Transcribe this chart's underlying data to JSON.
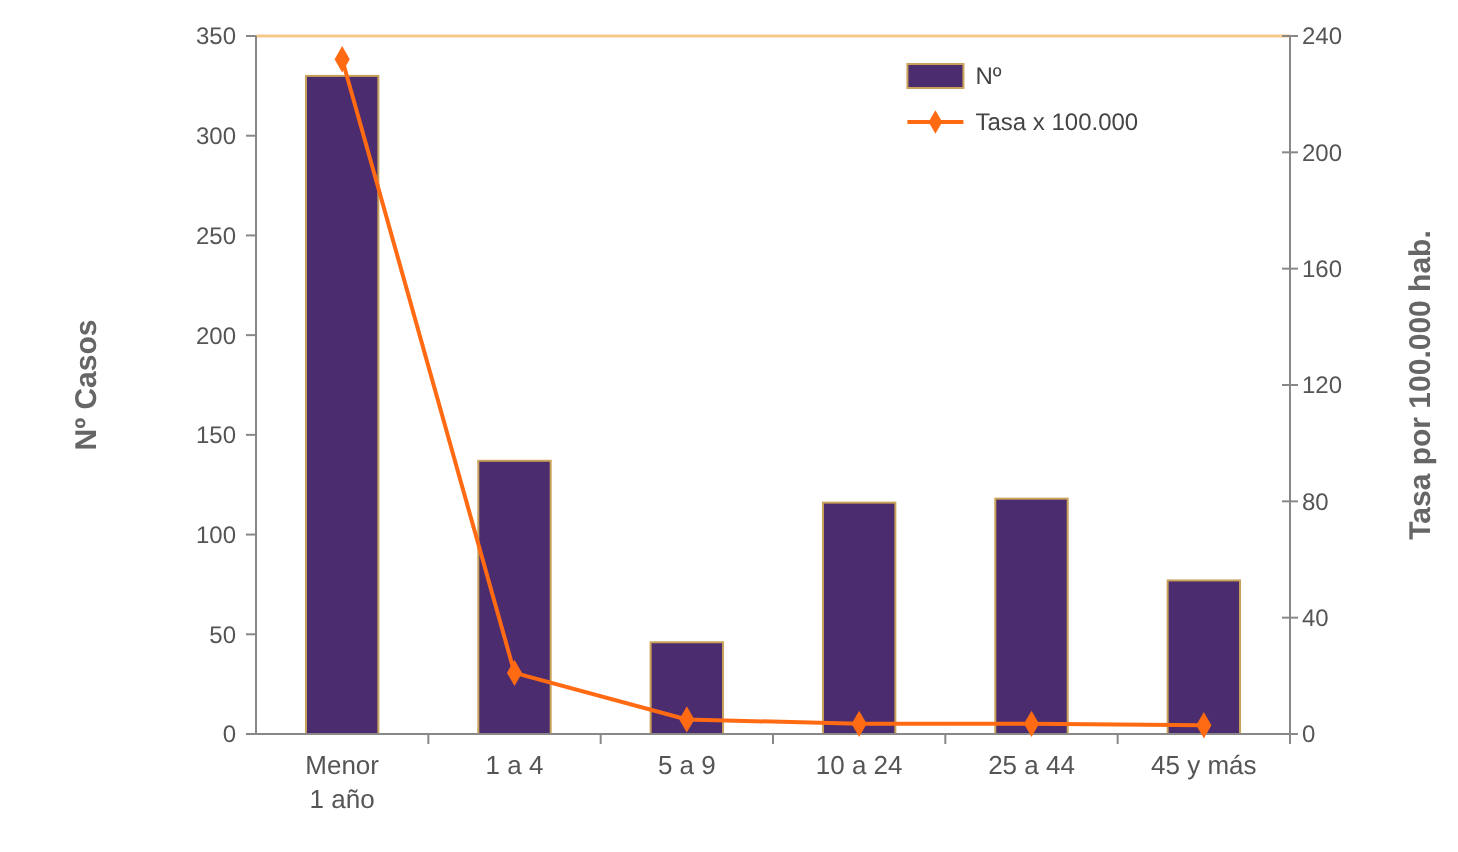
{
  "chart_data": {
    "type": "bar",
    "ylabel": "Nº Casos",
    "y2label": "Tasa por 100.000 hab.",
    "categories": [
      "Menor\n1 año",
      "1 a 4",
      "5 a 9",
      "10 a 24",
      "25 a 44",
      "45 y más"
    ],
    "series": [
      {
        "name": "Nº",
        "color": "#4b2c6e",
        "values": [
          330,
          137,
          46,
          116,
          118,
          77
        ]
      },
      {
        "name": "Tasa x 100.000",
        "type": "line",
        "axis": "y2",
        "color": "#ff6a13",
        "marker": "diamond",
        "values": [
          232,
          21,
          5,
          3.5,
          3.5,
          3
        ]
      }
    ],
    "ylim": [
      0,
      350
    ],
    "yticks": [
      0,
      50,
      100,
      150,
      200,
      250,
      300,
      350
    ],
    "y2lim": [
      0,
      240
    ],
    "y2ticks": [
      0,
      40,
      80,
      120,
      160,
      200,
      240
    ],
    "legend": "top right",
    "grid": false
  }
}
